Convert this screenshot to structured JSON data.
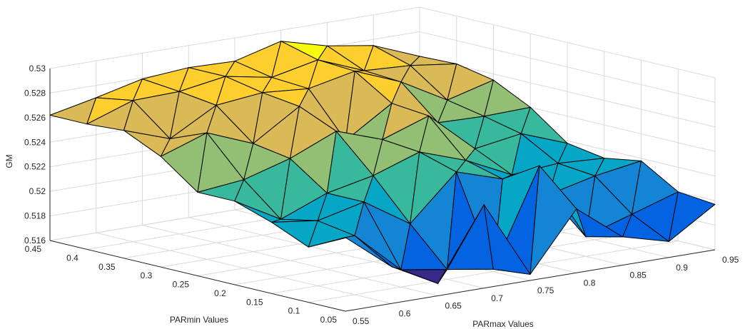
{
  "chart_data": {
    "type": "surface",
    "title": "",
    "xlabel": "PARmax Values",
    "ylabel": "PARmin Values",
    "zlabel": "GM",
    "x": [
      0.55,
      0.6,
      0.65,
      0.7,
      0.75,
      0.8,
      0.85,
      0.9,
      0.95
    ],
    "y": [
      0.05,
      0.1,
      0.15,
      0.2,
      0.25,
      0.3,
      0.35,
      0.4,
      0.45
    ],
    "z": [
      [
        0.522,
        0.519,
        0.517,
        0.5228,
        0.5165,
        0.5212,
        0.5183,
        0.5173,
        0.5197
      ],
      [
        0.5205,
        0.5208,
        0.5174,
        0.5168,
        0.5162,
        0.524,
        0.5176,
        0.5188,
        0.52
      ],
      [
        0.5218,
        0.5213,
        0.5222,
        0.5198,
        0.5234,
        0.5222,
        0.5203,
        0.5212,
        0.5218
      ],
      [
        0.5228,
        0.5207,
        0.5222,
        0.523,
        0.5243,
        0.523,
        0.5212,
        0.5215,
        0.5213
      ],
      [
        0.5228,
        0.5232,
        0.5243,
        0.5259,
        0.5246,
        0.5259,
        0.5226,
        0.5232,
        0.5218
      ],
      [
        0.525,
        0.5263,
        0.5248,
        0.5272,
        0.5238,
        0.5262,
        0.524,
        0.5239,
        0.524
      ],
      [
        0.5264,
        0.5251,
        0.5272,
        0.5276,
        0.5273,
        0.5281,
        0.5266,
        0.5245,
        0.5255
      ],
      [
        0.5262,
        0.5275,
        0.5276,
        0.5282,
        0.5275,
        0.5283,
        0.5268,
        0.5266,
        0.5261
      ],
      [
        0.5262,
        0.527,
        0.5279,
        0.5282,
        0.5281,
        0.5291,
        0.5281,
        0.5275,
        0.526
      ]
    ],
    "xticks": [
      "0.55",
      "0.6",
      "0.65",
      "0.7",
      "0.75",
      "0.8",
      "0.85",
      "0.9",
      "0.95"
    ],
    "yticks": [
      "0.05",
      "0.1",
      "0.15",
      "0.2",
      "0.25",
      "0.3",
      "0.35",
      "0.4",
      "0.45"
    ],
    "zticks": [
      "0.516",
      "0.518",
      "0.52",
      "0.522",
      "0.524",
      "0.526",
      "0.528",
      "0.53"
    ],
    "xlim": [
      0.55,
      0.95
    ],
    "ylim": [
      0.05,
      0.45
    ],
    "zlim": [
      0.516,
      0.53
    ],
    "grid": true,
    "colormap": [
      "#352a87",
      "#0363e1",
      "#1485d4",
      "#06a7c6",
      "#38b99e",
      "#92bf73",
      "#d9ba56",
      "#fcce2e",
      "#f9fb0e"
    ]
  }
}
